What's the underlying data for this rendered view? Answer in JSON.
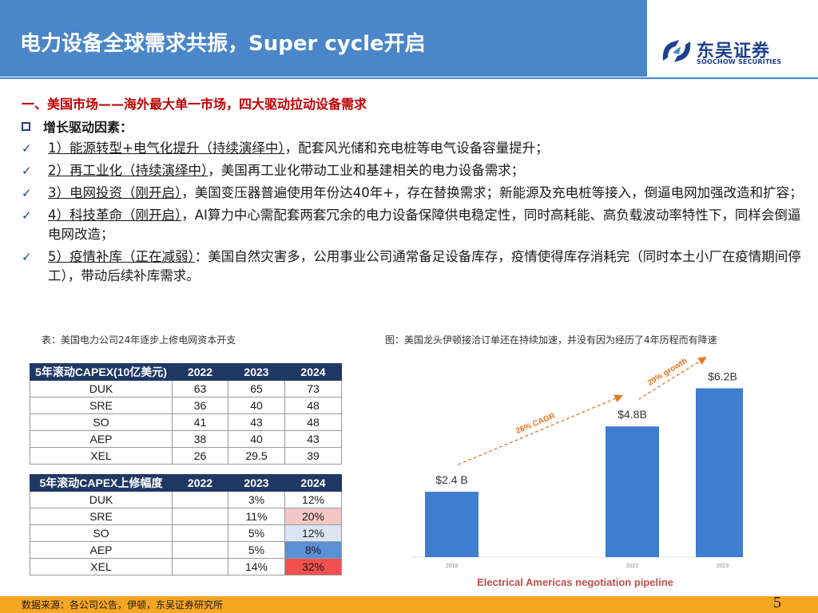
{
  "header": {
    "title": "电力设备全球需求共振，Super cycle开启",
    "logo_cn": "东吴证券",
    "logo_en": "SOOCHOW SECURITIES",
    "accent": "#4a86c8"
  },
  "section_title": "一、美国市场——海外最大单一市场，四大驱动拉动设备需求",
  "driver_heading": "增长驱动因素：",
  "drivers": [
    {
      "key": "1）能源转型+电气化提升（持续演绎中）",
      "text": "，配套风光储和充电桩等电气设备容量提升；"
    },
    {
      "key": "2）再工业化（持续演绎中）",
      "text": "，美国再工业化带动工业和基建相关的电力设备需求；"
    },
    {
      "key": "3）电网投资（刚开启）",
      "text": "，美国变压器普遍使用年份达40年+，存在替换需求；新能源及充电桩等接入，倒逼电网加强改造和扩容；"
    },
    {
      "key": "4）科技革命（刚开启）",
      "text": "，AI算力中心需配套两套冗余的电力设备保障供电稳定性，同时高耗能、高负载波动率特性下，同样会倒逼电网改造；"
    },
    {
      "key": "5）疫情补库（正在减弱）",
      "text": "：美国自然灾害多，公用事业公司通常备足设备库存，疫情使得库存消耗完（同时本土小厂在疫情期间停工），带动后续补库需求。"
    }
  ],
  "captions": {
    "left": "表：美国电力公司24年逐步上修电网资本开支",
    "right": "图：美国龙头伊顿接洽订单还在持续加速，并没有因为经历了4年历程而有降速"
  },
  "table1": {
    "headers": [
      "5年滚动CAPEX(10亿美元)",
      "2022",
      "2023",
      "2024"
    ],
    "rows": [
      [
        "DUK",
        "63",
        "65",
        "73"
      ],
      [
        "SRE",
        "36",
        "40",
        "48"
      ],
      [
        "SO",
        "41",
        "43",
        "48"
      ],
      [
        "AEP",
        "38",
        "40",
        "43"
      ],
      [
        "XEL",
        "26",
        "29.5",
        "39"
      ]
    ]
  },
  "table2": {
    "headers": [
      "5年滚动CAPEX上修幅度",
      "2022",
      "2023",
      "2024"
    ],
    "rows": [
      {
        "cells": [
          "DUK",
          "",
          "3%",
          "12%"
        ],
        "highlight": "#ffffff"
      },
      {
        "cells": [
          "SRE",
          "",
          "11%",
          "20%"
        ],
        "highlight": "#f4c7c7"
      },
      {
        "cells": [
          "SO",
          "",
          "5%",
          "12%"
        ],
        "highlight": "#dbe5f3"
      },
      {
        "cells": [
          "AEP",
          "",
          "5%",
          "8%"
        ],
        "highlight": "#5b8fd6"
      },
      {
        "cells": [
          "XEL",
          "",
          "14%",
          "32%"
        ],
        "highlight": "#f05050"
      }
    ]
  },
  "chart_data": {
    "type": "bar",
    "categories": [
      "2019",
      "2022",
      "2023"
    ],
    "values": [
      2.4,
      4.8,
      6.2
    ],
    "data_labels": [
      "$2.4 B",
      "$4.8B",
      "$6.2B"
    ],
    "ylim": [
      0,
      6.8
    ],
    "bar_color": "#3f7dd0",
    "annotations": [
      {
        "text": "26% CAGR",
        "from": "2019",
        "to": "2022",
        "color": "#e87722"
      },
      {
        "text": "29% growth",
        "from": "2022",
        "to": "2023",
        "color": "#e87722"
      }
    ],
    "title": "Electrical Americas negotiation pipeline",
    "title_color": "#c0504d"
  },
  "footer": {
    "source": "数据来源：各公司公告，伊顿，东吴证券研究所",
    "page_number": "5",
    "color": "#f5a623"
  }
}
